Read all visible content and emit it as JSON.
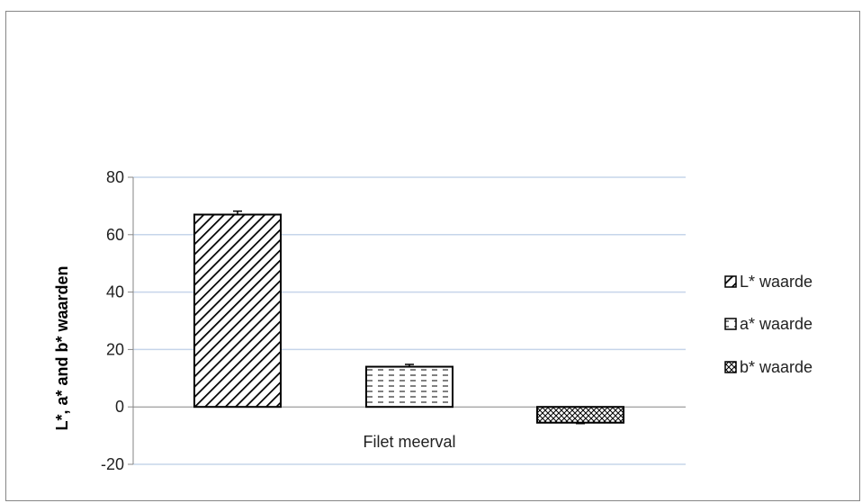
{
  "chart_data": {
    "type": "bar",
    "categories": [
      "Filet meerval"
    ],
    "series": [
      {
        "name": "L* waarde",
        "values": [
          67
        ],
        "error": [
          1.2
        ],
        "pattern": "diagonal"
      },
      {
        "name": "a* waarde",
        "values": [
          14
        ],
        "error": [
          0.8
        ],
        "pattern": "dashes"
      },
      {
        "name": "b* waarde",
        "values": [
          -5.5
        ],
        "error": [
          0.3
        ],
        "pattern": "crosshatch"
      }
    ],
    "title": "",
    "xlabel": "",
    "ylabel": "L*, a* and b* waarden",
    "ylim": [
      -20,
      80
    ],
    "yticks": [
      -20,
      0,
      20,
      40,
      60,
      80
    ],
    "grid": true,
    "legend_position": "right",
    "colors": {
      "frame": "#868686",
      "grid": "#c6d5ea",
      "axis": "#868686",
      "bar_stroke": "#000000"
    }
  }
}
